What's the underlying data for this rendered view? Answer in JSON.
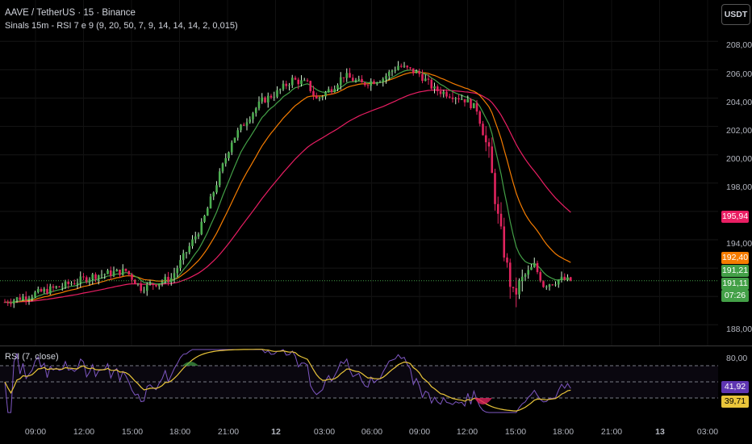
{
  "header": {
    "symbol_line": "AAVE / TetherUS · 15 · Binance",
    "indicator_line": "Sinals 15m - RSI 7 e 9 (9, 20, 50, 7, 9, 14, 14, 14, 2, 0,015)",
    "currency_button": "USDT"
  },
  "price_axis": {
    "labels": [
      "208,00",
      "206,00",
      "204,00",
      "202,00",
      "200,00",
      "198,00",
      "194,00",
      "188,00"
    ]
  },
  "price_badges": {
    "ema50": "195,94",
    "ema20": "192,40",
    "ema9": "191,21",
    "last_price": "191,11",
    "countdown": "07:26"
  },
  "rsi": {
    "title": "RSI (7, close)",
    "axis_label_top": "80,00",
    "rsi_badge": "41,92",
    "signal_badge": "39,71"
  },
  "time_axis": {
    "labels": [
      "09:00",
      "12:00",
      "15:00",
      "18:00",
      "21:00",
      "12",
      "03:00",
      "06:00",
      "09:00",
      "12:00",
      "15:00",
      "18:00",
      "21:00",
      "13",
      "03:00"
    ]
  },
  "colors": {
    "up": "#4caf50",
    "down": "#e0245e",
    "ema9": "#43a047",
    "ema20": "#f57c00",
    "ema50": "#e91e63",
    "rsi": "#7e57c2",
    "rsi_signal": "#e9c53a"
  },
  "chart_data": {
    "type": "candlestick",
    "price_anchors": [
      [
        0,
        189.6
      ],
      [
        10,
        190.2
      ],
      [
        20,
        190.8
      ],
      [
        30,
        191.5
      ],
      [
        40,
        191.8
      ],
      [
        45,
        190.6
      ],
      [
        55,
        191.3
      ],
      [
        65,
        195.0
      ],
      [
        70,
        198.0
      ],
      [
        75,
        201.0
      ],
      [
        80,
        202.5
      ],
      [
        85,
        203.8
      ],
      [
        90,
        204.4
      ],
      [
        95,
        205.3
      ],
      [
        100,
        205.0
      ],
      [
        103,
        203.9
      ],
      [
        108,
        204.7
      ],
      [
        112,
        205.6
      ],
      [
        118,
        205.0
      ],
      [
        125,
        205.4
      ],
      [
        130,
        206.3
      ],
      [
        137,
        205.7
      ],
      [
        142,
        204.6
      ],
      [
        148,
        204.2
      ],
      [
        152,
        203.9
      ],
      [
        156,
        203.2
      ],
      [
        160,
        200.0
      ],
      [
        163,
        195.5
      ],
      [
        166,
        192.0
      ],
      [
        168,
        190.0
      ],
      [
        172,
        191.5
      ],
      [
        175,
        192.2
      ],
      [
        178,
        190.8
      ],
      [
        181,
        191.0
      ],
      [
        184,
        191.2
      ],
      [
        187,
        191.1
      ]
    ],
    "ema9_end": 191.21,
    "ema20_end": 192.4,
    "ema50_end": 195.94,
    "last": 191.11,
    "rsi_levels": [
      70,
      50,
      30
    ],
    "rsi_last": 41.92,
    "rsi_signal_last": 39.71
  }
}
